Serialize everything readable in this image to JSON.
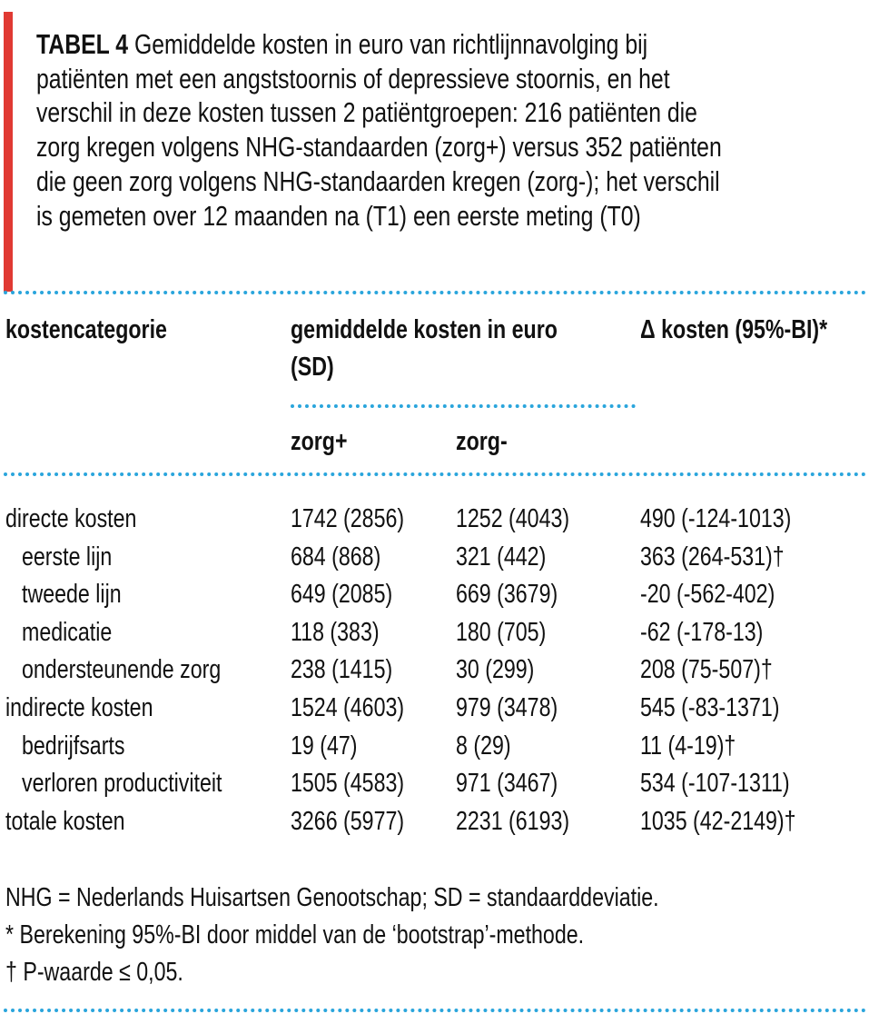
{
  "caption": {
    "label": "TABEL 4",
    "lines": [
      " Gemiddelde kosten in euro van richtlijnnavolging bij",
      "patiënten met een angststoornis of depressieve stoornis, en het",
      "verschil in deze kosten tussen 2 patiëntgroepen: 216 patiënten die",
      "zorg kregen volgens NHG-standaarden (zorg+) versus 352 patiënten",
      "die geen zorg volgens NHG-standaarden kregen (zorg-); het verschil",
      "is gemeten over 12 maanden na (T1) een eerste meting (T0)"
    ]
  },
  "colors": {
    "accent_bar": "#e03a33",
    "rule": "#2aa5dc"
  },
  "table": {
    "headers": {
      "category": "kostencategorie",
      "mean_line1": "gemiddelde kosten in euro",
      "mean_line2": "(SD)",
      "delta": "Δ kosten (95%-BI)*",
      "zorg_plus": "zorg+",
      "zorg_min": "zorg-"
    },
    "rows": [
      {
        "category": "directe kosten",
        "indent": false,
        "zorg_plus": "1742 (2856)",
        "zorg_min": "1252 (4043)",
        "delta": "490 (-124-1013)"
      },
      {
        "category": "eerste lijn",
        "indent": true,
        "zorg_plus": "684 (868)",
        "zorg_min": "321 (442)",
        "delta": "363 (264-531)†"
      },
      {
        "category": "tweede lijn",
        "indent": true,
        "zorg_plus": "649 (2085)",
        "zorg_min": "669 (3679)",
        "delta": "-20 (-562-402)"
      },
      {
        "category": "medicatie",
        "indent": true,
        "zorg_plus": "118 (383)",
        "zorg_min": "180 (705)",
        "delta": "-62 (-178-13)"
      },
      {
        "category": "ondersteunende zorg",
        "indent": true,
        "zorg_plus": "238 (1415)",
        "zorg_min": "30 (299)",
        "delta": "208 (75-507)†"
      },
      {
        "category": "indirecte kosten",
        "indent": false,
        "zorg_plus": "1524 (4603)",
        "zorg_min": "979 (3478)",
        "delta": "545 (-83-1371)"
      },
      {
        "category": "bedrijfsarts",
        "indent": true,
        "zorg_plus": "19 (47)",
        "zorg_min": "8 (29)",
        "delta": "11 (4-19)†"
      },
      {
        "category": "verloren productiviteit",
        "indent": true,
        "zorg_plus": "1505 (4583)",
        "zorg_min": "971 (3467)",
        "delta": "534 (-107-1311)"
      },
      {
        "category": "totale kosten",
        "indent": false,
        "zorg_plus": "3266 (5977)",
        "zorg_min": "2231 (6193)",
        "delta": "1035 (42-2149)†"
      }
    ]
  },
  "footnotes": [
    "NHG = Nederlands Huisartsen Genootschap; SD = standaarddeviatie.",
    "* Berekening 95%-BI door middel van de ‘bootstrap’-methode.",
    "† P-waarde ≤ 0,05."
  ]
}
